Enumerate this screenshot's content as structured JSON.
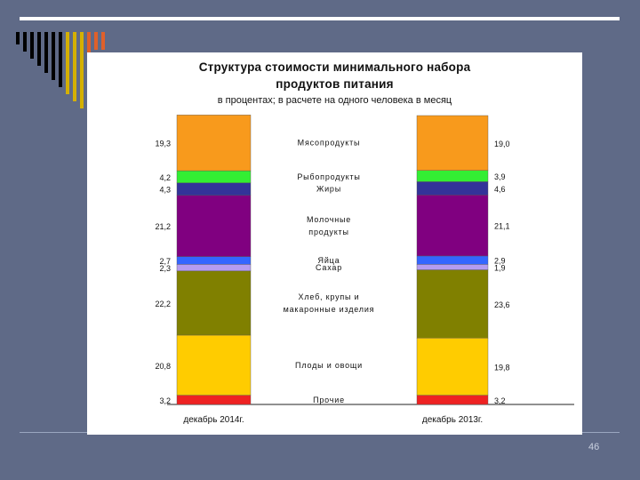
{
  "slide": {
    "page_number": "46"
  },
  "chart_data": {
    "type": "bar",
    "stacked": true,
    "title": "Структура стоимости минимального набора",
    "title_line2": "продуктов питания",
    "subtitle": "в процентах; в расчете на одного человека в месяц",
    "categories": [
      "декабрь 2014г.",
      "декабрь 2013г."
    ],
    "series": [
      {
        "name": "Мясопродукты",
        "label_lines": [
          "Мясопродукты"
        ],
        "color": "#f89a1c",
        "values": [
          19.3,
          19.0
        ],
        "labels": [
          "19,3",
          "19,0"
        ]
      },
      {
        "name": "Рыбопродукты",
        "label_lines": [
          "Рыбопродукты"
        ],
        "color": "#33ee33",
        "values": [
          4.2,
          3.9
        ],
        "labels": [
          "4,2",
          "3,9"
        ]
      },
      {
        "name": "Жиры",
        "label_lines": [
          "Жиры"
        ],
        "color": "#333399",
        "values": [
          4.3,
          4.6
        ],
        "labels": [
          "4,3",
          "4,6"
        ]
      },
      {
        "name": "Молочные продукты",
        "label_lines": [
          "Молочные",
          "продукты"
        ],
        "color": "#800080",
        "values": [
          21.2,
          21.1
        ],
        "labels": [
          "21,2",
          "21,1"
        ]
      },
      {
        "name": "Яйца",
        "label_lines": [
          "Яйца"
        ],
        "color": "#3366ff",
        "values": [
          2.7,
          2.9
        ],
        "labels": [
          "2,7",
          "2,9"
        ]
      },
      {
        "name": "Сахар",
        "label_lines": [
          "Сахар"
        ],
        "color": "#b49cf0",
        "values": [
          2.3,
          1.9
        ],
        "labels": [
          "2,3",
          "1,9"
        ]
      },
      {
        "name": "Хлеб, крупы и макаронные изделия",
        "label_lines": [
          "Хлеб, крупы и",
          "макаронные изделия"
        ],
        "color": "#808000",
        "values": [
          22.2,
          23.6
        ],
        "labels": [
          "22,2",
          "23,6"
        ]
      },
      {
        "name": "Плоды и овощи",
        "label_lines": [
          "Плоды и овощи"
        ],
        "color": "#ffcc00",
        "values": [
          20.8,
          19.8
        ],
        "labels": [
          "20,8",
          "19,8"
        ]
      },
      {
        "name": "Прочие",
        "label_lines": [
          "Прочие"
        ],
        "color": "#ee2222",
        "values": [
          3.2,
          3.2
        ],
        "labels": [
          "3,2",
          "3,2"
        ]
      }
    ],
    "ylim": [
      0,
      100
    ],
    "gridlines": false,
    "legend": "center between bars"
  }
}
